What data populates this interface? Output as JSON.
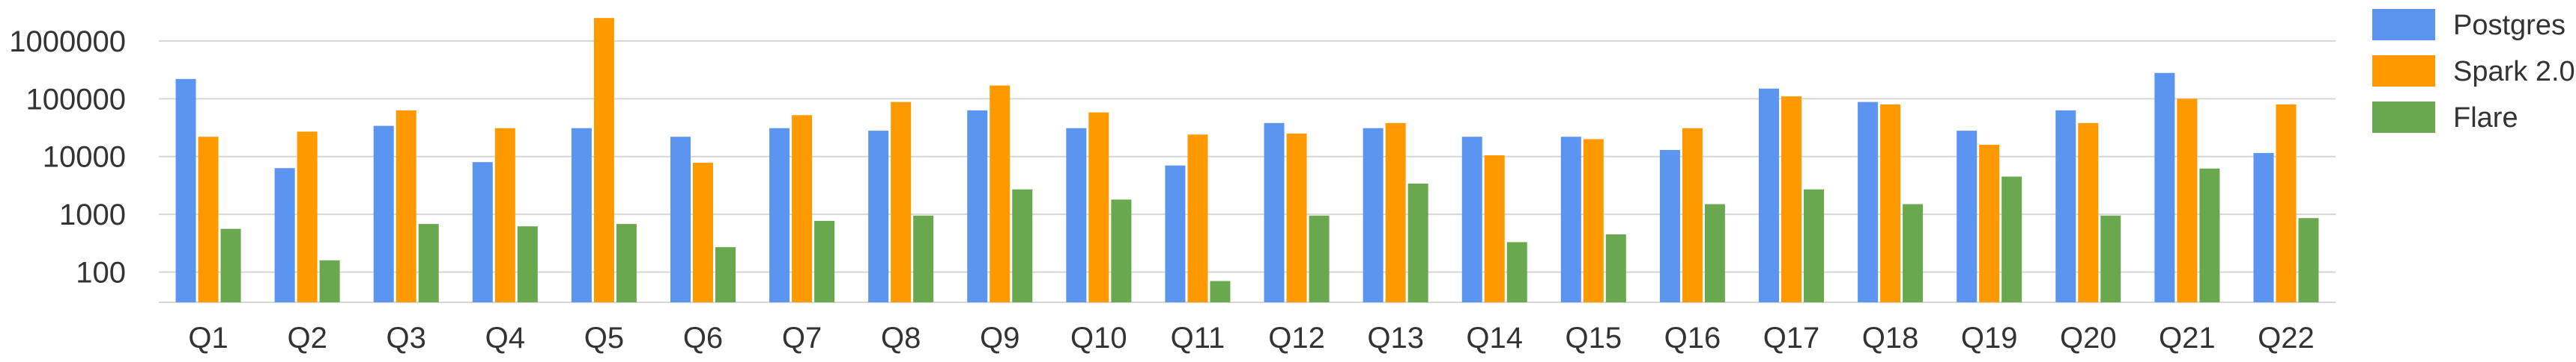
{
  "chart_data": {
    "type": "bar",
    "scale": "log",
    "ylim": [
      30,
      3000000
    ],
    "yticks": [
      100,
      1000,
      10000,
      100000,
      1000000
    ],
    "ytick_labels": [
      "100",
      "1000",
      "10000",
      "100000",
      "1000000"
    ],
    "grid": true,
    "legend_position": "top-right",
    "categories": [
      "Q1",
      "Q2",
      "Q3",
      "Q4",
      "Q5",
      "Q6",
      "Q7",
      "Q8",
      "Q9",
      "Q10",
      "Q11",
      "Q12",
      "Q13",
      "Q14",
      "Q15",
      "Q16",
      "Q17",
      "Q18",
      "Q19",
      "Q20",
      "Q21",
      "Q22"
    ],
    "series": [
      {
        "name": "Postgres",
        "color": "#5b95f0",
        "values": [
          220000,
          6300,
          34000,
          8000,
          31000,
          22000,
          31000,
          28000,
          63000,
          31000,
          7000,
          38000,
          31000,
          22000,
          22000,
          13000,
          150000,
          88000,
          28000,
          63000,
          280000,
          11500
        ]
      },
      {
        "name": "Spark 2.0",
        "color": "#ff9900",
        "values": [
          22000,
          27000,
          63000,
          31000,
          2500000,
          7800,
          52000,
          88000,
          170000,
          58000,
          24000,
          25000,
          38000,
          10500,
          20000,
          31000,
          110000,
          80000,
          16000,
          38000,
          100000,
          80000
        ]
      },
      {
        "name": "Flare",
        "color": "#6aa84f",
        "values": [
          560,
          160,
          680,
          620,
          680,
          270,
          770,
          950,
          2700,
          1800,
          70,
          950,
          3400,
          330,
          450,
          1500,
          2700,
          1500,
          4500,
          950,
          6200,
          860
        ]
      }
    ]
  }
}
